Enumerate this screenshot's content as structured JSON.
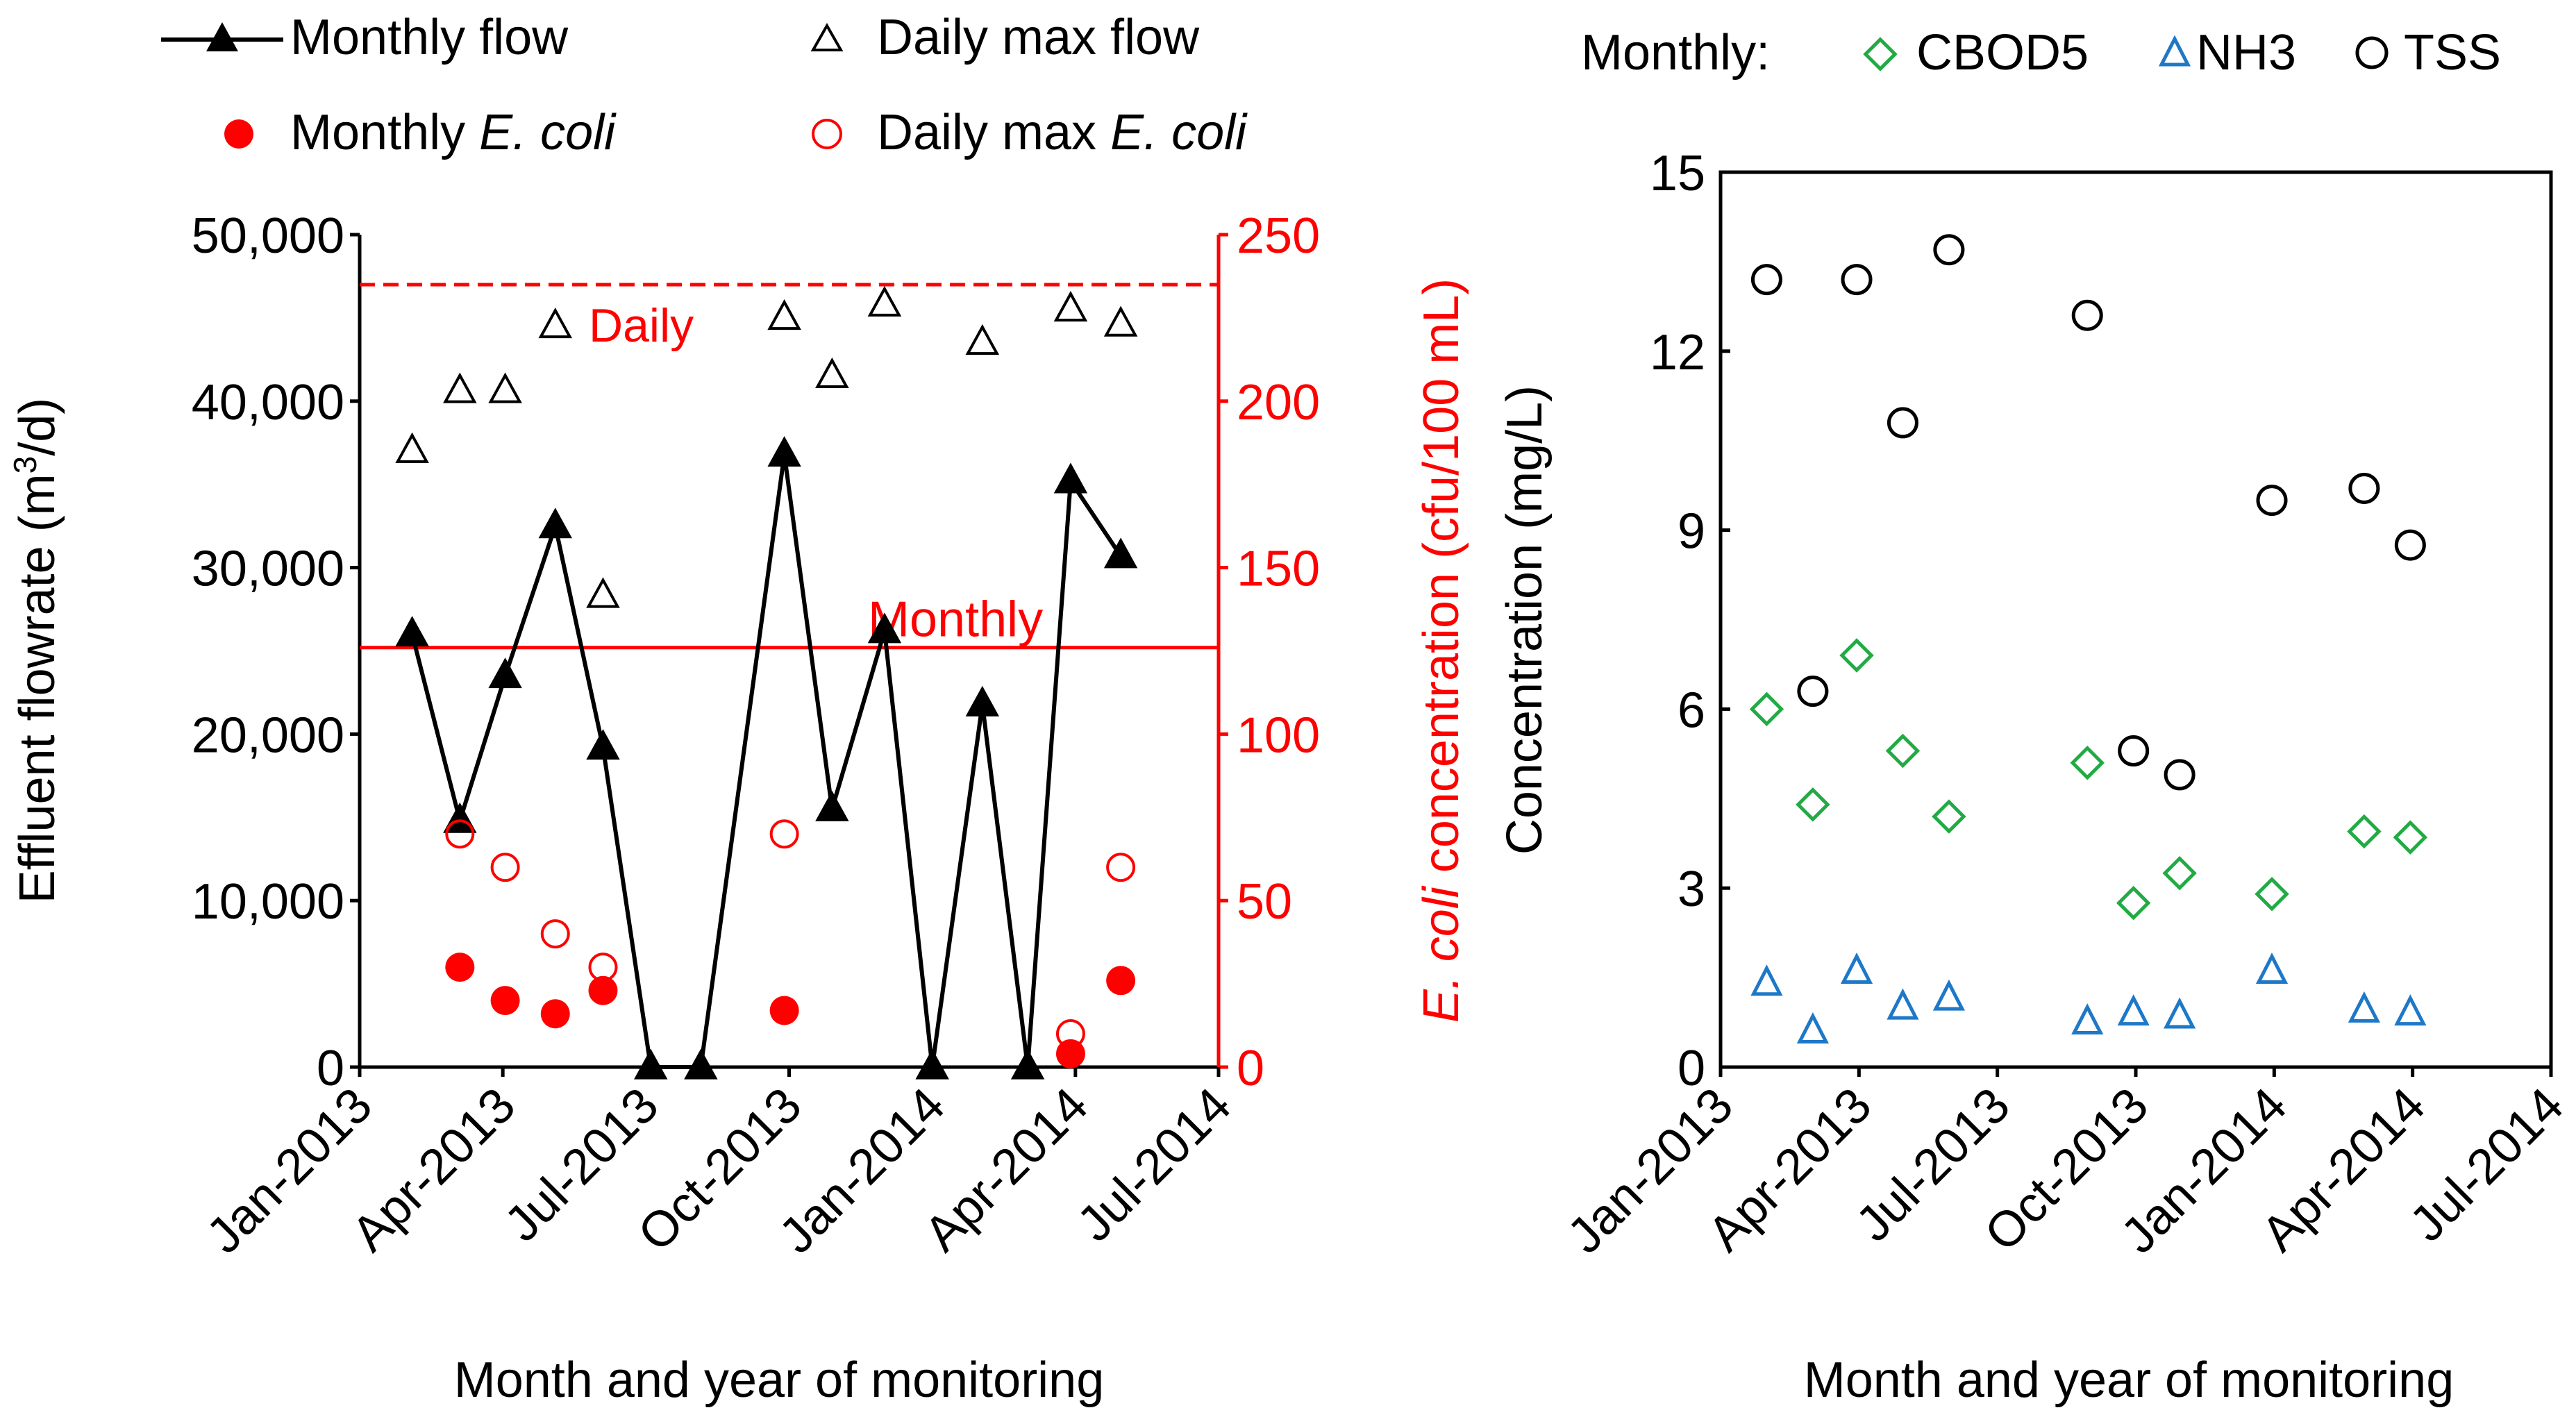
{
  "chart_data": [
    {
      "type": "line",
      "legend": {
        "monthly_flow": "Monthly flow",
        "daily_max_flow": "Daily max flow",
        "monthly_ecoli_prefix": "Monthly ",
        "monthly_ecoli_italic": "E. coli",
        "daily_max_ecoli_prefix": "Daily max ",
        "daily_max_ecoli_italic": "E. coli"
      },
      "xlabel": "Month and year of monitoring",
      "x_ticks": [
        "Jan-2013",
        "Apr-2013",
        "Jul-2013",
        "Oct-2013",
        "Jan-2014",
        "Apr-2014",
        "Jul-2014"
      ],
      "x_range_months": [
        0,
        18
      ],
      "ylabel_left_main": "Effluent flowrate (m",
      "ylabel_left_sup": "3",
      "ylabel_left_end": "/d)",
      "ylim_left": [
        0,
        50000
      ],
      "y_ticks_left": [
        "0",
        "10,000",
        "20,000",
        "30,000",
        "40,000",
        "50,000"
      ],
      "ylabel_right_italic": "E. coli",
      "ylabel_right_rest": " concentration (cfu/100 mL)",
      "ylim_right": [
        0,
        250
      ],
      "y_ticks_right": [
        "0",
        "50",
        "100",
        "150",
        "200",
        "250"
      ],
      "limits": [
        {
          "label": "Daily",
          "value": 235,
          "style": "dashed"
        },
        {
          "label": "Monthly",
          "value": 126,
          "style": "solid"
        }
      ],
      "series": [
        {
          "name": "Monthly flow",
          "axis": "left",
          "x": [
            1.1,
            2.1,
            3.05,
            4.1,
            5.1,
            6.1,
            7.15,
            8.9,
            9.9,
            11.0,
            12.0,
            13.05,
            14.0,
            14.9,
            15.95
          ],
          "values": [
            26000,
            14800,
            23500,
            32500,
            19200,
            0,
            0,
            36800,
            15500,
            26200,
            0,
            21800,
            0,
            35200,
            30700
          ]
        },
        {
          "name": "Daily max flow",
          "axis": "left",
          "x": [
            1.1,
            2.1,
            3.05,
            4.1,
            5.1,
            8.9,
            9.9,
            11.0,
            13.05,
            14.9,
            15.95
          ],
          "values": [
            37000,
            40600,
            40600,
            44500,
            28300,
            45000,
            41500,
            45800,
            43500,
            45500,
            44600
          ]
        },
        {
          "name": "Monthly E. coli",
          "axis": "right",
          "x": [
            2.1,
            3.05,
            4.1,
            5.1,
            8.9,
            14.9,
            15.95
          ],
          "values": [
            30,
            20,
            16,
            23,
            17,
            4,
            26
          ]
        },
        {
          "name": "Daily max E. coli",
          "axis": "right",
          "x": [
            2.1,
            3.05,
            4.1,
            5.1,
            8.9,
            14.9,
            15.95
          ],
          "values": [
            70,
            60,
            40,
            30,
            70,
            10,
            60
          ]
        }
      ],
      "colors": {
        "flow": "#000000",
        "ecoli": "#ff0000"
      }
    },
    {
      "type": "scatter",
      "legend": {
        "prefix": "Monthly:",
        "cbod5": "CBOD5",
        "nh3": "NH3",
        "tss": "TSS"
      },
      "xlabel": "Month and year of monitoring",
      "x_ticks": [
        "Jan-2013",
        "Apr-2013",
        "Jul-2013",
        "Oct-2013",
        "Jan-2014",
        "Apr-2014",
        "Jul-2014"
      ],
      "x_range_months": [
        0,
        18
      ],
      "ylabel": "Concentration (mg/L)",
      "ylim": [
        0,
        15
      ],
      "y_ticks": [
        "0",
        "3",
        "6",
        "9",
        "12",
        "15"
      ],
      "series": [
        {
          "name": "CBOD5",
          "x": [
            1.0,
            2.0,
            2.95,
            3.95,
            4.95,
            7.95,
            8.95,
            9.95,
            11.95,
            13.95,
            14.95
          ],
          "values": [
            6.0,
            4.4,
            6.9,
            5.3,
            4.2,
            5.1,
            2.75,
            3.25,
            2.9,
            3.95,
            3.85
          ]
        },
        {
          "name": "NH3",
          "x": [
            1.0,
            2.0,
            2.95,
            3.95,
            4.95,
            7.95,
            8.95,
            9.95,
            11.95,
            13.95,
            14.95
          ],
          "values": [
            1.4,
            0.6,
            1.6,
            1.0,
            1.15,
            0.75,
            0.9,
            0.85,
            1.6,
            0.95,
            0.9
          ]
        },
        {
          "name": "TSS",
          "x": [
            1.0,
            2.0,
            2.95,
            3.95,
            4.95,
            7.95,
            8.95,
            9.95,
            11.95,
            13.95,
            14.95
          ],
          "values": [
            13.2,
            6.3,
            13.2,
            10.8,
            13.7,
            12.6,
            5.3,
            4.9,
            9.5,
            9.7,
            8.75
          ]
        }
      ],
      "colors": {
        "cbod5": "#22aa44",
        "nh3": "#1e78c8",
        "tss": "#000000"
      }
    }
  ]
}
